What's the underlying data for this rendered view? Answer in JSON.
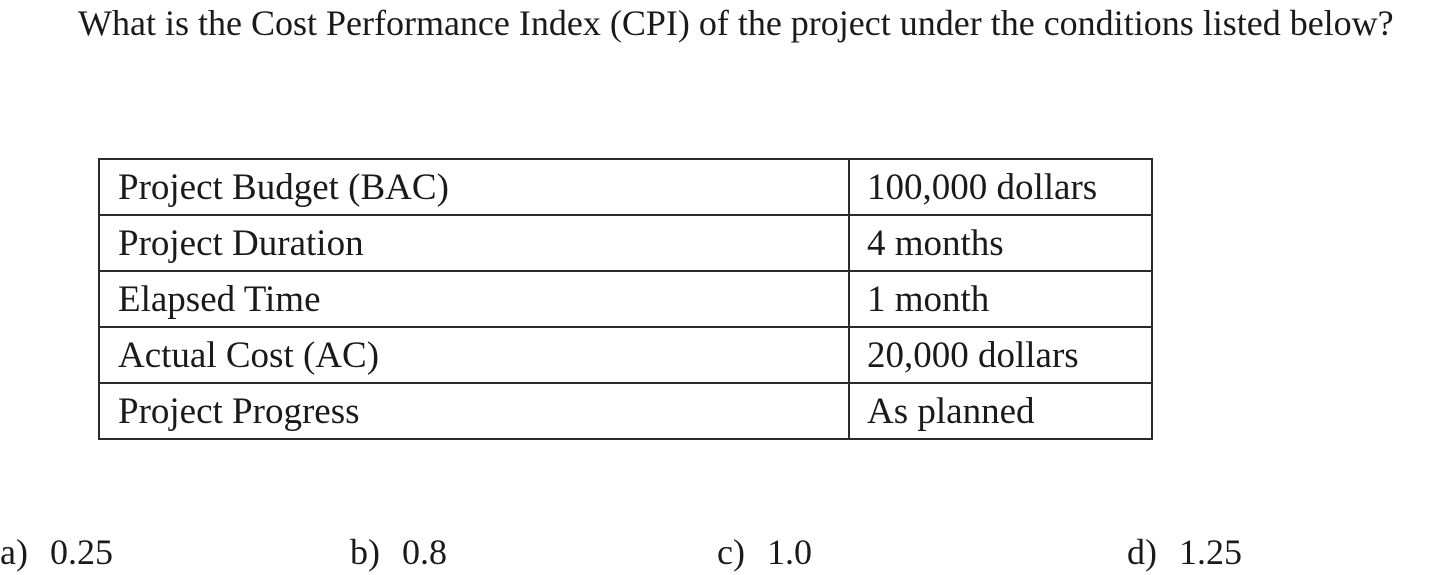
{
  "question": {
    "text": "What is the Cost Performance Index (CPI) of the project under the conditions listed below?"
  },
  "table": {
    "rows": [
      {
        "label": "Project Budget (BAC)",
        "value": "100,000 dollars"
      },
      {
        "label": "Project Duration",
        "value": "4 months"
      },
      {
        "label": "Elapsed Time",
        "value": "1 month"
      },
      {
        "label": "Actual Cost (AC)",
        "value": "20,000 dollars"
      },
      {
        "label": "Project Progress",
        "value": "As planned"
      }
    ]
  },
  "options": [
    {
      "letter": "a)",
      "value": "0.25"
    },
    {
      "letter": "b)",
      "value": "0.8"
    },
    {
      "letter": "c)",
      "value": "1.0"
    },
    {
      "letter": "d)",
      "value": "1.25"
    }
  ]
}
